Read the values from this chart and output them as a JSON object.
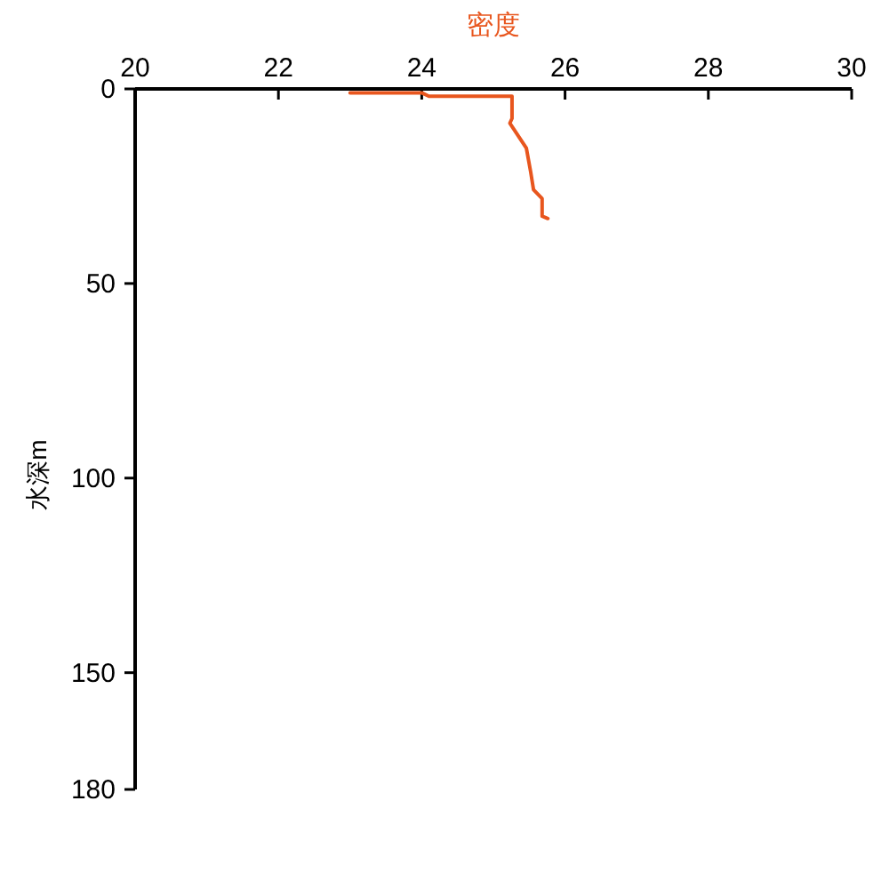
{
  "chart_data": {
    "type": "line",
    "xlabel": "密度",
    "ylabel": "水深m",
    "xlim": [
      20,
      30
    ],
    "xticks": [
      20,
      22,
      24,
      26,
      28,
      30
    ],
    "ylim": [
      180,
      0
    ],
    "yticks": [
      0,
      50,
      100,
      150,
      180
    ],
    "series": [
      {
        "color": "#e8561e",
        "x": [
          23.0,
          24.0,
          24.1,
          25.26,
          25.26,
          25.23,
          25.46,
          25.52,
          25.56,
          25.68,
          25.68,
          25.76
        ],
        "values": [
          1.0,
          1.0,
          1.9,
          1.9,
          7.6,
          8.8,
          15.2,
          21.3,
          25.9,
          28.2,
          32.7,
          33.3
        ]
      }
    ]
  }
}
